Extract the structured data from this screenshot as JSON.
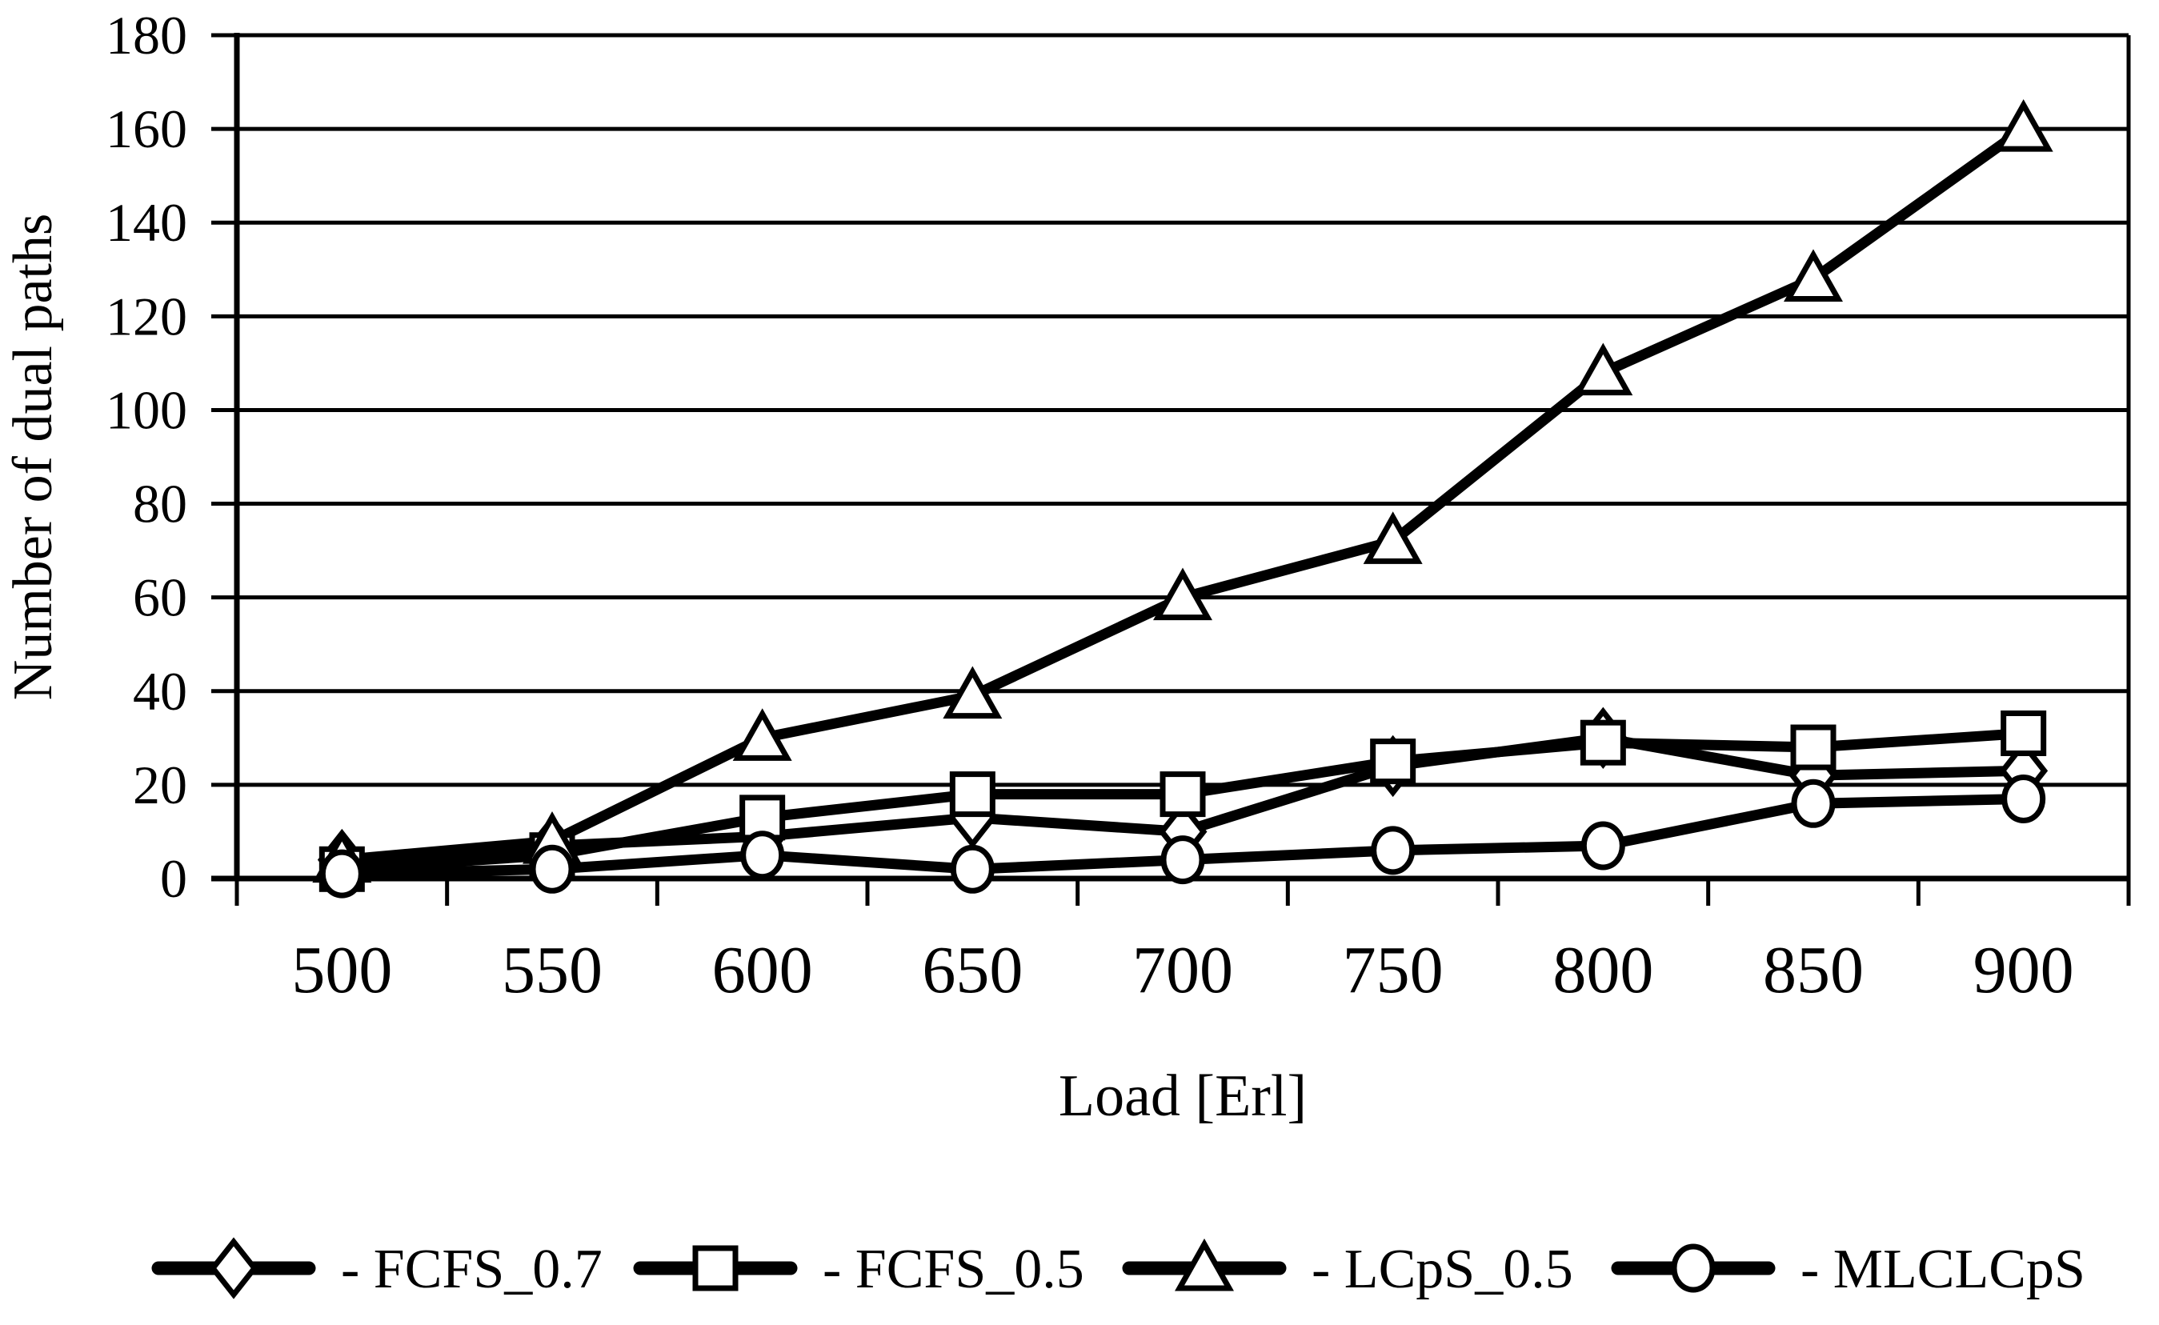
{
  "chart_data": {
    "type": "line",
    "title": "",
    "xlabel": "Load [Erl]",
    "ylabel": "Number of dual paths",
    "categories": [
      500,
      550,
      600,
      650,
      700,
      750,
      800,
      850,
      900
    ],
    "series": [
      {
        "name": "FCFS_0.7",
        "marker": "diamond",
        "values": [
          4,
          7,
          9,
          13,
          10,
          24,
          30,
          22,
          23
        ]
      },
      {
        "name": "FCFS_0.5",
        "marker": "square",
        "values": [
          2,
          5,
          13,
          18,
          18,
          25,
          29,
          28,
          31
        ]
      },
      {
        "name": "LCpS_0.5",
        "marker": "triangle",
        "values": [
          4,
          8,
          30,
          39,
          60,
          72,
          108,
          128,
          160
        ]
      },
      {
        "name": "MLCLCpS",
        "marker": "circle",
        "values": [
          1,
          2,
          5,
          2,
          4,
          6,
          7,
          16,
          17
        ]
      }
    ],
    "ylim": [
      0,
      180
    ],
    "ytick_step": 20,
    "ytick_labels": [
      "0",
      "20",
      "40",
      "60",
      "80",
      "100",
      "120",
      "140",
      "160",
      "180"
    ],
    "xtick_labels": [
      "500",
      "550",
      "600",
      "650",
      "700",
      "750",
      "800",
      "850",
      "900"
    ],
    "grid": "horizontal",
    "legend_position": "bottom",
    "legend_item_prefix": "- ",
    "line_color": "#000000",
    "marker_fill": "#ffffff",
    "background": "#ffffff"
  }
}
